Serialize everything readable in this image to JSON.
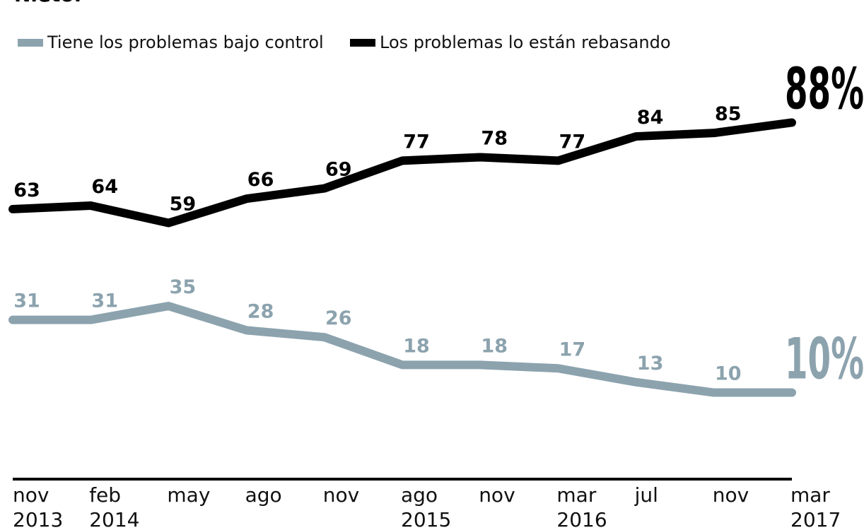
{
  "chart_data": {
    "type": "line",
    "title": "Nieto.",
    "categories": [
      "nov",
      "feb",
      "may",
      "ago",
      "nov",
      "ago",
      "nov",
      "mar",
      "jul",
      "nov",
      "mar"
    ],
    "category_years": [
      "2013",
      "2014",
      null,
      null,
      null,
      "2015",
      null,
      "2016",
      null,
      null,
      "2017"
    ],
    "series": [
      {
        "name": "Tiene los problemas bajo control",
        "color": "#8ca3ae",
        "values": [
          31,
          31,
          35,
          28,
          26,
          18,
          18,
          17,
          13,
          10,
          10
        ],
        "value_labels": [
          "31",
          "31",
          "35",
          "28",
          "26",
          "18",
          "18",
          "17",
          "13",
          "10",
          "10%"
        ]
      },
      {
        "name": "Los problemas lo están rebasando",
        "color": "#000000",
        "values": [
          63,
          64,
          59,
          66,
          69,
          77,
          78,
          77,
          84,
          85,
          88
        ],
        "value_labels": [
          "63",
          "64",
          "59",
          "66",
          "69",
          "77",
          "78",
          "77",
          "84",
          "85",
          "88%"
        ]
      }
    ],
    "ylim": [
      -15,
      103
    ],
    "legend": "top-left"
  }
}
